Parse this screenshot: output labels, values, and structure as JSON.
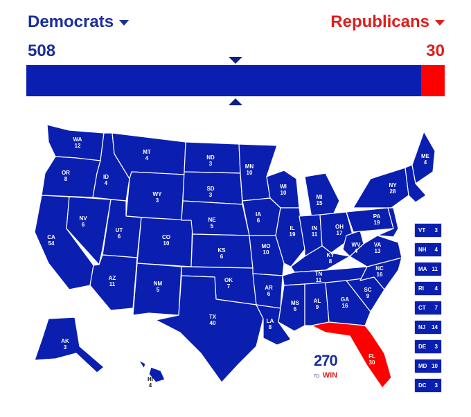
{
  "header": {
    "dem_label": "Democrats",
    "rep_label": "Republicans",
    "dem_total": "508",
    "rep_total": "30",
    "dem_fraction": 0.944,
    "rep_fraction": 0.056
  },
  "colors": {
    "democrat": "#0a1fb0",
    "republican": "#ff0000",
    "dem_text": "#1c2e9a",
    "rep_text": "#e01c1c"
  },
  "states": [
    {
      "abbr": "WA",
      "ev": "12",
      "party": "D"
    },
    {
      "abbr": "OR",
      "ev": "8",
      "party": "D"
    },
    {
      "abbr": "CA",
      "ev": "54",
      "party": "D"
    },
    {
      "abbr": "NV",
      "ev": "6",
      "party": "D"
    },
    {
      "abbr": "ID",
      "ev": "4",
      "party": "D"
    },
    {
      "abbr": "MT",
      "ev": "4",
      "party": "D"
    },
    {
      "abbr": "WY",
      "ev": "3",
      "party": "D"
    },
    {
      "abbr": "UT",
      "ev": "6",
      "party": "D"
    },
    {
      "abbr": "AZ",
      "ev": "11",
      "party": "D"
    },
    {
      "abbr": "CO",
      "ev": "10",
      "party": "D"
    },
    {
      "abbr": "NM",
      "ev": "5",
      "party": "D"
    },
    {
      "abbr": "ND",
      "ev": "3",
      "party": "D"
    },
    {
      "abbr": "SD",
      "ev": "3",
      "party": "D"
    },
    {
      "abbr": "NE",
      "ev": "5",
      "party": "D"
    },
    {
      "abbr": "KS",
      "ev": "6",
      "party": "D"
    },
    {
      "abbr": "OK",
      "ev": "7",
      "party": "D"
    },
    {
      "abbr": "TX",
      "ev": "40",
      "party": "D"
    },
    {
      "abbr": "MN",
      "ev": "10",
      "party": "D"
    },
    {
      "abbr": "IA",
      "ev": "6",
      "party": "D"
    },
    {
      "abbr": "MO",
      "ev": "10",
      "party": "D"
    },
    {
      "abbr": "AR",
      "ev": "6",
      "party": "D"
    },
    {
      "abbr": "LA",
      "ev": "8",
      "party": "D"
    },
    {
      "abbr": "WI",
      "ev": "10",
      "party": "D"
    },
    {
      "abbr": "IL",
      "ev": "19",
      "party": "D"
    },
    {
      "abbr": "MI",
      "ev": "15",
      "party": "D"
    },
    {
      "abbr": "IN",
      "ev": "11",
      "party": "D"
    },
    {
      "abbr": "OH",
      "ev": "17",
      "party": "D"
    },
    {
      "abbr": "KY",
      "ev": "8",
      "party": "D"
    },
    {
      "abbr": "TN",
      "ev": "11",
      "party": "D"
    },
    {
      "abbr": "MS",
      "ev": "6",
      "party": "D"
    },
    {
      "abbr": "AL",
      "ev": "9",
      "party": "D"
    },
    {
      "abbr": "GA",
      "ev": "16",
      "party": "D"
    },
    {
      "abbr": "FL",
      "ev": "30",
      "party": "R"
    },
    {
      "abbr": "SC",
      "ev": "9",
      "party": "D"
    },
    {
      "abbr": "NC",
      "ev": "16",
      "party": "D"
    },
    {
      "abbr": "VA",
      "ev": "13",
      "party": "D"
    },
    {
      "abbr": "WV",
      "ev": "4",
      "party": "D"
    },
    {
      "abbr": "PA",
      "ev": "19",
      "party": "D"
    },
    {
      "abbr": "NY",
      "ev": "28",
      "party": "D"
    },
    {
      "abbr": "ME",
      "ev": "4",
      "party": "D"
    },
    {
      "abbr": "AK",
      "ev": "3",
      "party": "D"
    },
    {
      "abbr": "HI",
      "ev": "4",
      "party": "D"
    }
  ],
  "small_states": [
    {
      "abbr": "VT",
      "ev": "3"
    },
    {
      "abbr": "NH",
      "ev": "4"
    },
    {
      "abbr": "MA",
      "ev": "11"
    },
    {
      "abbr": "RI",
      "ev": "4"
    },
    {
      "abbr": "CT",
      "ev": "7"
    },
    {
      "abbr": "NJ",
      "ev": "14"
    },
    {
      "abbr": "DE",
      "ev": "3"
    },
    {
      "abbr": "MD",
      "ev": "10"
    },
    {
      "abbr": "DC",
      "ev": "3"
    }
  ],
  "logo": {
    "number": "270",
    "to": "TO",
    "win": "WIN"
  }
}
